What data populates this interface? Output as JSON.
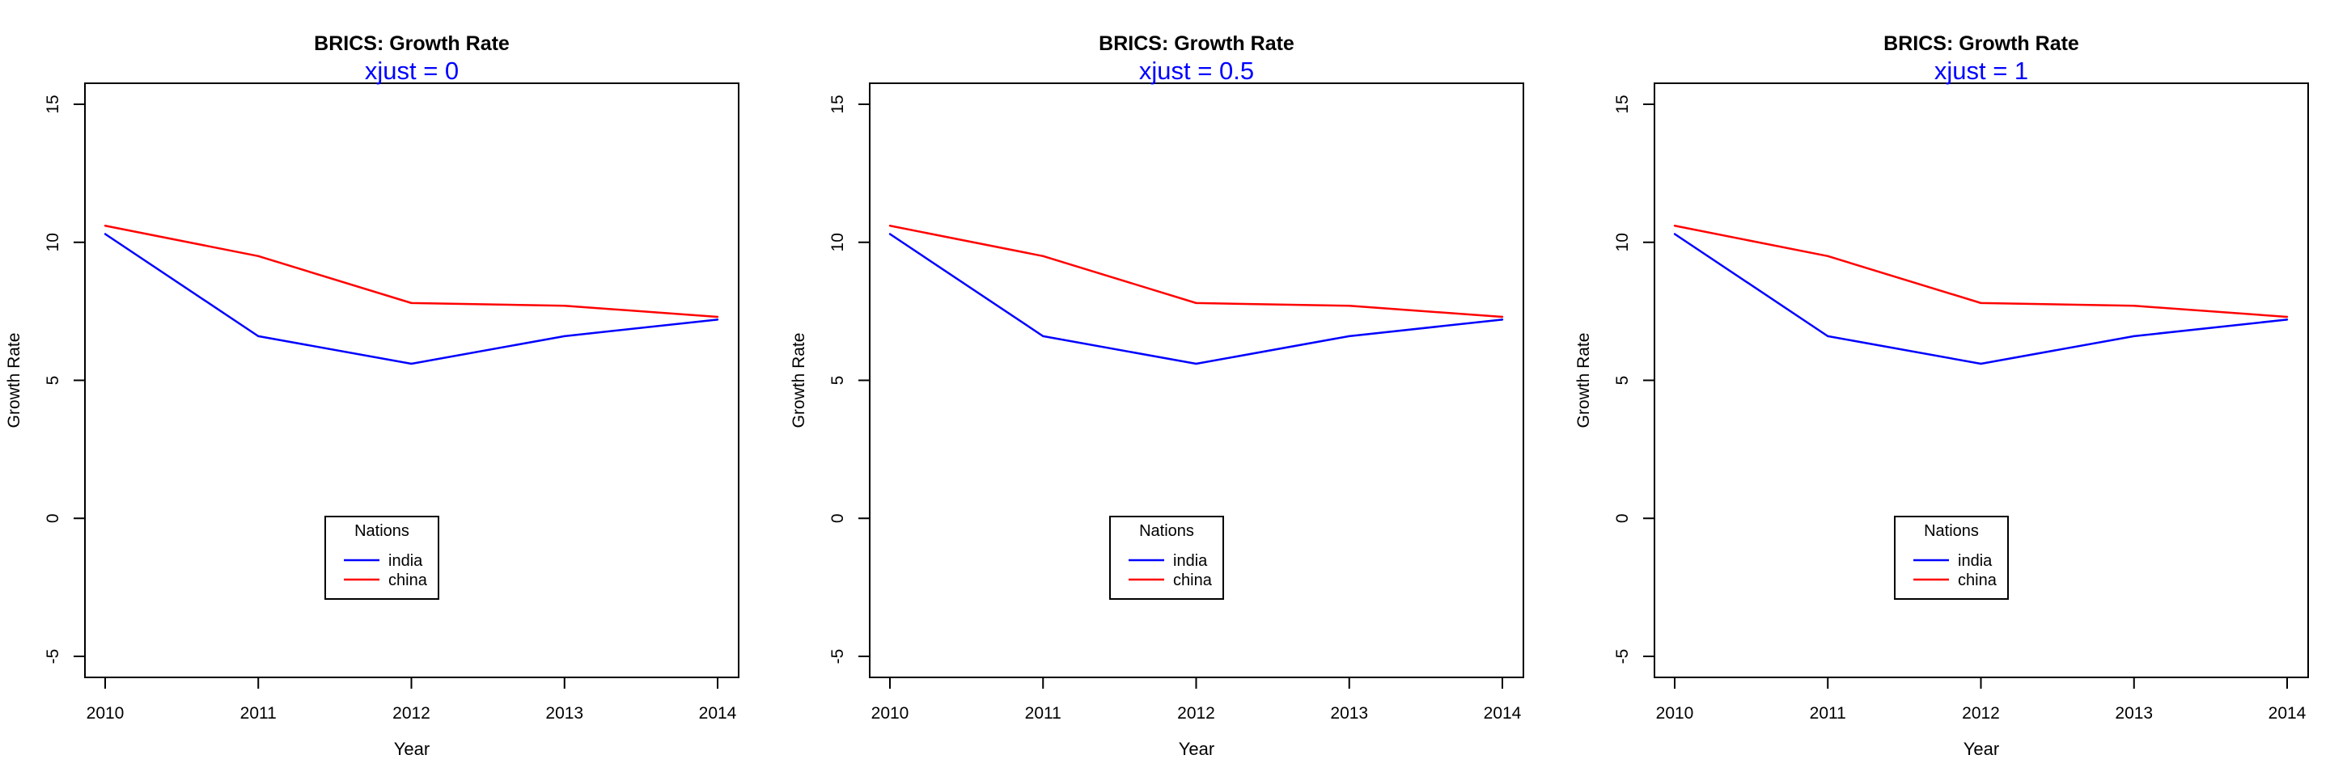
{
  "chart_data": [
    {
      "type": "line",
      "title": "BRICS: Growth Rate",
      "subtitle": "xjust =  0",
      "xlabel": "Year",
      "ylabel": "Growth Rate",
      "x": [
        2010,
        2011,
        2012,
        2013,
        2014
      ],
      "x_ticks": [
        "2010",
        "2011",
        "2012",
        "2013",
        "2014"
      ],
      "y_ticks": [
        "-5",
        "0",
        "5",
        "10",
        "15"
      ],
      "ylim": [
        -5,
        15
      ],
      "grid": false,
      "legend": {
        "title": "Nations",
        "position": "bottom-center"
      },
      "series": [
        {
          "name": "india",
          "color": "#0000FF",
          "values": [
            10.3,
            6.6,
            5.6,
            6.6,
            7.2
          ]
        },
        {
          "name": "china",
          "color": "#FF0000",
          "values": [
            10.6,
            9.5,
            7.8,
            7.7,
            7.3
          ]
        }
      ]
    },
    {
      "type": "line",
      "title": "BRICS: Growth Rate",
      "subtitle": "xjust =  0.5",
      "xlabel": "Year",
      "ylabel": "Growth Rate",
      "x": [
        2010,
        2011,
        2012,
        2013,
        2014
      ],
      "x_ticks": [
        "2010",
        "2011",
        "2012",
        "2013",
        "2014"
      ],
      "y_ticks": [
        "-5",
        "0",
        "5",
        "10",
        "15"
      ],
      "ylim": [
        -5,
        15
      ],
      "grid": false,
      "legend": {
        "title": "Nations",
        "position": "bottom-center"
      },
      "series": [
        {
          "name": "india",
          "color": "#0000FF",
          "values": [
            10.3,
            6.6,
            5.6,
            6.6,
            7.2
          ]
        },
        {
          "name": "china",
          "color": "#FF0000",
          "values": [
            10.6,
            9.5,
            7.8,
            7.7,
            7.3
          ]
        }
      ]
    },
    {
      "type": "line",
      "title": "BRICS: Growth Rate",
      "subtitle": "xjust =  1",
      "xlabel": "Year",
      "ylabel": "Growth Rate",
      "x": [
        2010,
        2011,
        2012,
        2013,
        2014
      ],
      "x_ticks": [
        "2010",
        "2011",
        "2012",
        "2013",
        "2014"
      ],
      "y_ticks": [
        "-5",
        "0",
        "5",
        "10",
        "15"
      ],
      "ylim": [
        -5,
        15
      ],
      "grid": false,
      "legend": {
        "title": "Nations",
        "position": "bottom-center"
      },
      "series": [
        {
          "name": "india",
          "color": "#0000FF",
          "values": [
            10.3,
            6.6,
            5.6,
            6.6,
            7.2
          ]
        },
        {
          "name": "china",
          "color": "#FF0000",
          "values": [
            10.6,
            9.5,
            7.8,
            7.7,
            7.3
          ]
        }
      ]
    }
  ],
  "colors": {
    "subtitle": "#0000FF",
    "axis": "#000000"
  }
}
